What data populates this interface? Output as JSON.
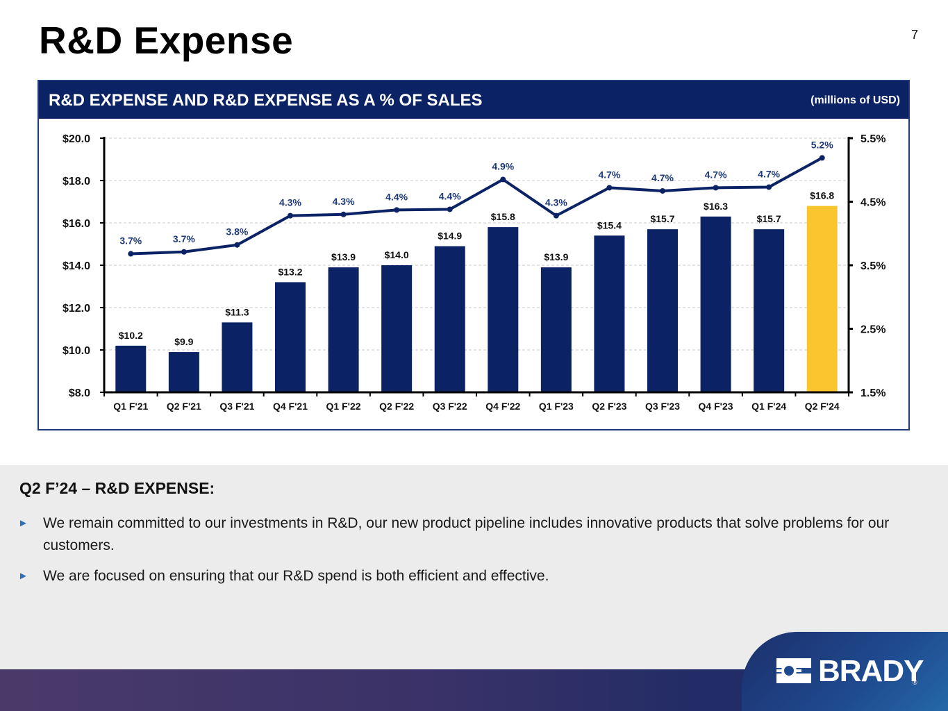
{
  "slide": {
    "title": "R&D Expense",
    "page_number": "7"
  },
  "chart_panel": {
    "header_title": "R&D EXPENSE AND R&D EXPENSE AS A % OF SALES",
    "units": "(millions of USD)"
  },
  "chart_data": {
    "type": "bar",
    "title": "R&D EXPENSE AND R&D EXPENSE AS A % OF SALES",
    "subtitle": "(millions of USD)",
    "categories": [
      "Q1 F'21",
      "Q2 F'21",
      "Q3 F'21",
      "Q4 F'21",
      "Q1 F'22",
      "Q2 F'22",
      "Q3 F'22",
      "Q4 F'22",
      "Q1 F'23",
      "Q2 F'23",
      "Q3 F'23",
      "Q4 F'23",
      "Q1 F'24",
      "Q2 F'24"
    ],
    "series": [
      {
        "name": "R&D Expense",
        "type": "bar",
        "axis": "left",
        "values": [
          10.2,
          9.9,
          11.3,
          13.2,
          13.9,
          14.0,
          14.9,
          15.8,
          13.9,
          15.4,
          15.7,
          16.3,
          15.7,
          16.8
        ],
        "labels": [
          "$10.2",
          "$9.9",
          "$11.3",
          "$13.2",
          "$13.9",
          "$14.0",
          "$14.9",
          "$15.8",
          "$13.9",
          "$15.4",
          "$15.7",
          "$16.3",
          "$15.7",
          "$16.8"
        ],
        "color": "#0b2265",
        "highlight_color": "#fbc52f",
        "highlight_index": 13
      },
      {
        "name": "R&D Expense as a % of Sales",
        "type": "line",
        "axis": "right",
        "values": [
          3.68,
          3.71,
          3.82,
          4.28,
          4.3,
          4.37,
          4.38,
          4.85,
          4.28,
          4.72,
          4.67,
          4.72,
          4.73,
          5.19
        ],
        "labels": [
          "3.7%",
          "3.7%",
          "3.8%",
          "4.3%",
          "4.3%",
          "4.4%",
          "4.4%",
          "4.9%",
          "4.3%",
          "4.7%",
          "4.7%",
          "4.7%",
          "4.7%",
          "5.2%"
        ],
        "color": "#0b2265"
      }
    ],
    "y_left": {
      "range": [
        8,
        20
      ],
      "ticks": [
        "$8.0",
        "$10.0",
        "$12.0",
        "$14.0",
        "$16.0",
        "$18.0",
        "$20.0"
      ],
      "tick_values": [
        8,
        10,
        12,
        14,
        16,
        18,
        20
      ]
    },
    "y_right": {
      "range": [
        1.5,
        5.5
      ],
      "ticks": [
        "1.5%",
        "2.5%",
        "3.5%",
        "4.5%",
        "5.5%"
      ],
      "tick_values": [
        1.5,
        2.5,
        3.5,
        4.5,
        5.5
      ]
    },
    "xlabel": "",
    "ylabel": "",
    "grid": true,
    "legend": "none"
  },
  "commentary": {
    "section_title": "Q2 F’24 – R&D EXPENSE:",
    "bullets": [
      "We remain committed to our investments in R&D, our new product pipeline includes innovative products that solve problems for our customers.",
      "We are focused on ensuring that our R&D spend is both efficient and effective."
    ],
    "bullet_icon": "►"
  },
  "branding": {
    "logo_text": "BRADY",
    "registered_mark": "®"
  }
}
